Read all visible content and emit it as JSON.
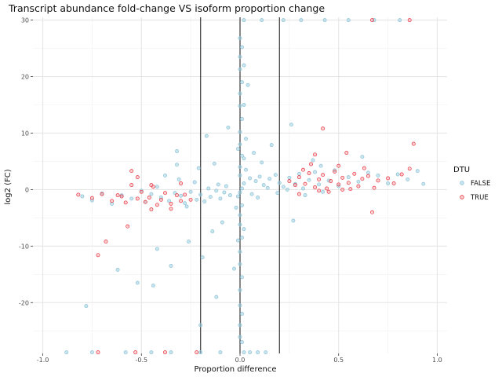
{
  "chart_data": {
    "type": "scatter",
    "title": "Transcript abundance fold-change VS isoform proportion change",
    "xlabel": "Proportion difference",
    "ylabel": "log2 (FC)",
    "xlim": [
      -1.05,
      1.05
    ],
    "ylim": [
      -29,
      30.5
    ],
    "xticks": [
      -1.0,
      -0.5,
      0.0,
      0.5,
      1.0
    ],
    "xtick_labels": [
      "-1.0",
      "-0.5",
      "0.0",
      "0.5",
      "1.0"
    ],
    "yticks": [
      -20,
      -10,
      0,
      10,
      20,
      30
    ],
    "ytick_labels": [
      "-20",
      "-10",
      "0",
      "10",
      "20",
      "30"
    ],
    "grid": true,
    "vlines": [
      -0.2,
      0.0,
      0.2
    ],
    "legend": {
      "title": "DTU",
      "position": "right",
      "entries": [
        "FALSE",
        "TRUE"
      ]
    },
    "series": [
      {
        "name": "FALSE",
        "color": "#9ecfe0",
        "points": [
          [
            0.01,
            0.2
          ],
          [
            0.0,
            -0.5
          ],
          [
            0.02,
            1.1
          ],
          [
            -0.01,
            -1.2
          ],
          [
            0.0,
            2.5
          ],
          [
            0.01,
            -2.8
          ],
          [
            0.0,
            4.0
          ],
          [
            0.0,
            -4.5
          ],
          [
            0.01,
            6.0
          ],
          [
            0.0,
            -6.2
          ],
          [
            0.0,
            8.0
          ],
          [
            0.01,
            -8.5
          ],
          [
            0.0,
            10.2
          ],
          [
            0.0,
            -11.0
          ],
          [
            0.01,
            12.5
          ],
          [
            0.0,
            -13.2
          ],
          [
            0.0,
            14.8
          ],
          [
            0.01,
            -15.5
          ],
          [
            0.0,
            17.0
          ],
          [
            0.0,
            -17.8
          ],
          [
            0.01,
            19.0
          ],
          [
            0.0,
            -20.5
          ],
          [
            0.0,
            21.3
          ],
          [
            0.01,
            -22.0
          ],
          [
            0.0,
            23.5
          ],
          [
            0.0,
            -24.0
          ],
          [
            0.01,
            25.2
          ],
          [
            0.0,
            -26.1
          ],
          [
            0.0,
            26.8
          ],
          [
            0.01,
            -27.0
          ],
          [
            0.02,
            15.0
          ],
          [
            0.03,
            9.0
          ],
          [
            0.02,
            5.5
          ],
          [
            -0.01,
            7.2
          ],
          [
            -0.01,
            -9.0
          ],
          [
            0.02,
            -7.0
          ],
          [
            0.03,
            3.5
          ],
          [
            -0.02,
            -3.2
          ],
          [
            0.04,
            18.5
          ],
          [
            0.02,
            22.0
          ],
          [
            0.05,
            2.0
          ],
          [
            0.08,
            1.5
          ],
          [
            0.1,
            2.3
          ],
          [
            0.12,
            0.8
          ],
          [
            0.15,
            1.9
          ],
          [
            0.18,
            2.6
          ],
          [
            0.2,
            1.2
          ],
          [
            0.22,
            0.5
          ],
          [
            0.25,
            2.1
          ],
          [
            0.28,
            1.0
          ],
          [
            0.3,
            2.8
          ],
          [
            0.32,
            0.2
          ],
          [
            0.35,
            1.7
          ],
          [
            0.38,
            3.1
          ],
          [
            0.4,
            0.9
          ],
          [
            0.42,
            -0.4
          ],
          [
            0.45,
            1.6
          ],
          [
            0.48,
            3.4
          ],
          [
            0.5,
            0.6
          ],
          [
            0.55,
            2.2
          ],
          [
            0.6,
            1.4
          ],
          [
            0.65,
            3.0
          ],
          [
            0.7,
            2.5
          ],
          [
            0.75,
            1.1
          ],
          [
            0.8,
            2.7
          ],
          [
            0.85,
            1.8
          ],
          [
            0.9,
            3.3
          ],
          [
            0.93,
            1.0
          ],
          [
            0.06,
            -0.8
          ],
          [
            0.09,
            -1.4
          ],
          [
            0.14,
            0.3
          ],
          [
            0.19,
            -0.6
          ],
          [
            0.24,
            0.0
          ],
          [
            0.33,
            -1.0
          ],
          [
            0.41,
            4.2
          ],
          [
            -0.05,
            -1.0
          ],
          [
            -0.08,
            -0.5
          ],
          [
            -0.1,
            -1.6
          ],
          [
            -0.12,
            -0.2
          ],
          [
            -0.15,
            -1.3
          ],
          [
            -0.18,
            -2.1
          ],
          [
            -0.2,
            -0.9
          ],
          [
            -0.22,
            -1.8
          ],
          [
            -0.25,
            -0.4
          ],
          [
            -0.28,
            -2.4
          ],
          [
            -0.3,
            -1.1
          ],
          [
            -0.33,
            -0.6
          ],
          [
            -0.36,
            -2.0
          ],
          [
            -0.4,
            -1.4
          ],
          [
            -0.42,
            0.5
          ],
          [
            -0.45,
            -0.8
          ],
          [
            -0.48,
            -2.2
          ],
          [
            -0.5,
            -0.2
          ],
          [
            -0.55,
            -1.6
          ],
          [
            -0.6,
            -1.0
          ],
          [
            -0.65,
            -2.5
          ],
          [
            -0.7,
            -0.7
          ],
          [
            -0.75,
            -1.9
          ],
          [
            -0.8,
            -1.2
          ],
          [
            -0.07,
            0.6
          ],
          [
            -0.11,
            0.9
          ],
          [
            -0.16,
            0.2
          ],
          [
            -0.23,
            1.3
          ],
          [
            -0.31,
            1.8
          ],
          [
            -0.38,
            2.5
          ],
          [
            -0.27,
            -3.0
          ],
          [
            0.07,
            6.5
          ],
          [
            0.11,
            4.8
          ],
          [
            0.16,
            7.9
          ],
          [
            0.26,
            11.5
          ],
          [
            0.37,
            5.2
          ],
          [
            0.62,
            5.8
          ],
          [
            0.27,
            -5.5
          ],
          [
            -0.09,
            -5.8
          ],
          [
            -0.14,
            -7.4
          ],
          [
            -0.19,
            -12.0
          ],
          [
            -0.26,
            -9.2
          ],
          [
            -0.35,
            -13.5
          ],
          [
            -0.44,
            -17.0
          ],
          [
            -0.52,
            -16.5
          ],
          [
            -0.13,
            4.6
          ],
          [
            -0.21,
            3.8
          ],
          [
            -0.32,
            4.4
          ],
          [
            -0.06,
            11.0
          ],
          [
            -0.17,
            9.5
          ],
          [
            -0.03,
            -14.0
          ],
          [
            -0.42,
            -10.5
          ],
          [
            -0.32,
            6.8
          ],
          [
            -0.78,
            -20.6
          ],
          [
            -0.62,
            -14.2
          ],
          [
            -0.2,
            -24.0
          ],
          [
            -0.12,
            -19.0
          ],
          [
            0.02,
            -28.8
          ],
          [
            0.05,
            -28.8
          ],
          [
            0.09,
            -28.8
          ],
          [
            0.13,
            -28.8
          ],
          [
            -0.1,
            -28.8
          ],
          [
            -0.2,
            -28.8
          ],
          [
            -0.35,
            -28.8
          ],
          [
            -0.45,
            -28.8
          ],
          [
            -0.58,
            -28.8
          ],
          [
            -0.75,
            -28.8
          ],
          [
            -0.88,
            -28.8
          ],
          [
            0.22,
            30.0
          ],
          [
            0.31,
            30.0
          ],
          [
            0.43,
            30.0
          ],
          [
            0.55,
            30.0
          ],
          [
            0.68,
            30.0
          ],
          [
            0.81,
            30.0
          ],
          [
            0.11,
            30.0
          ],
          [
            0.02,
            30.0
          ]
        ]
      },
      {
        "name": "TRUE",
        "color": "#e8323c",
        "points": [
          [
            0.25,
            1.5
          ],
          [
            0.28,
            0.8
          ],
          [
            0.3,
            2.2
          ],
          [
            0.33,
            1.0
          ],
          [
            0.35,
            2.9
          ],
          [
            0.38,
            0.4
          ],
          [
            0.4,
            1.8
          ],
          [
            0.42,
            2.6
          ],
          [
            0.44,
            0.2
          ],
          [
            0.46,
            1.5
          ],
          [
            0.48,
            3.2
          ],
          [
            0.5,
            0.9
          ],
          [
            0.52,
            2.1
          ],
          [
            0.55,
            1.2
          ],
          [
            0.58,
            2.8
          ],
          [
            0.6,
            0.6
          ],
          [
            0.62,
            1.9
          ],
          [
            0.65,
            2.4
          ],
          [
            0.68,
            0.3
          ],
          [
            0.7,
            1.6
          ],
          [
            0.75,
            2.0
          ],
          [
            0.78,
            1.1
          ],
          [
            0.82,
            2.7
          ],
          [
            0.86,
            3.7
          ],
          [
            0.88,
            8.1
          ],
          [
            0.36,
            4.5
          ],
          [
            0.45,
            -0.4
          ],
          [
            0.5,
            4.2
          ],
          [
            0.54,
            6.5
          ],
          [
            0.32,
            3.5
          ],
          [
            0.38,
            6.2
          ],
          [
            0.42,
            10.8
          ],
          [
            0.67,
            -4.0
          ],
          [
            0.3,
            -0.8
          ],
          [
            0.4,
            -0.2
          ],
          [
            0.56,
            0.1
          ],
          [
            0.63,
            3.8
          ],
          [
            0.52,
            0.0
          ],
          [
            -0.25,
            -1.8
          ],
          [
            -0.28,
            -0.9
          ],
          [
            -0.3,
            -2.0
          ],
          [
            -0.32,
            -1.0
          ],
          [
            -0.35,
            -2.5
          ],
          [
            -0.38,
            -0.6
          ],
          [
            -0.4,
            -1.8
          ],
          [
            -0.42,
            -2.7
          ],
          [
            -0.44,
            0.5
          ],
          [
            -0.46,
            -1.4
          ],
          [
            -0.48,
            -2.2
          ],
          [
            -0.5,
            -0.4
          ],
          [
            -0.52,
            -1.6
          ],
          [
            -0.55,
            0.8
          ],
          [
            -0.58,
            -2.3
          ],
          [
            -0.6,
            -1.2
          ],
          [
            -0.65,
            -2.0
          ],
          [
            -0.7,
            -0.8
          ],
          [
            -0.75,
            -1.5
          ],
          [
            -0.82,
            -0.9
          ],
          [
            -0.3,
            1.1
          ],
          [
            -0.52,
            2.2
          ],
          [
            -0.55,
            3.3
          ],
          [
            -0.45,
            -3.5
          ],
          [
            -0.68,
            -9.2
          ],
          [
            -0.72,
            -11.6
          ],
          [
            -0.62,
            -1.0
          ],
          [
            -0.45,
            0.8
          ],
          [
            -0.35,
            -3.4
          ],
          [
            -0.57,
            -6.5
          ],
          [
            -0.72,
            -28.8
          ],
          [
            -0.53,
            -28.8
          ],
          [
            -0.38,
            -28.8
          ],
          [
            -0.22,
            -28.8
          ],
          [
            0.86,
            30.0
          ],
          [
            0.67,
            30.0
          ]
        ]
      }
    ]
  }
}
